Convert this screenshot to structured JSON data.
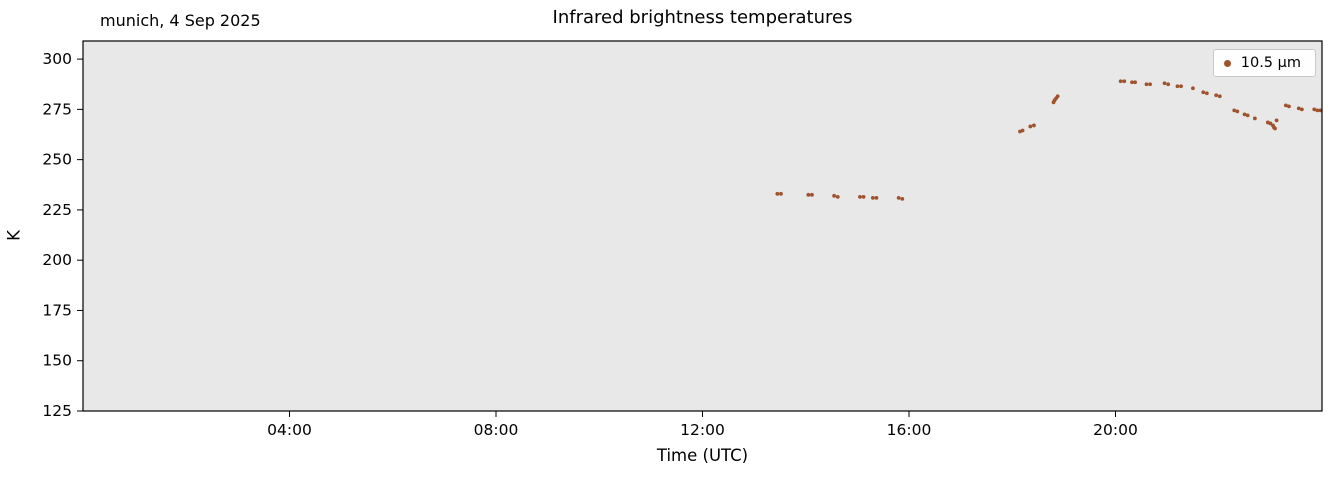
{
  "chart_data": {
    "type": "scatter",
    "title": "Infrared brightness temperatures",
    "subtitle": "munich, 4 Sep 2025",
    "xlabel": "Time (UTC)",
    "ylabel": "K",
    "grid": false,
    "plot_background": "#e8e8e8",
    "xlim_hours": [
      0,
      24
    ],
    "ylim": [
      125,
      309
    ],
    "x_ticks": [
      {
        "hour": 4,
        "label": "04:00"
      },
      {
        "hour": 8,
        "label": "08:00"
      },
      {
        "hour": 12,
        "label": "12:00"
      },
      {
        "hour": 16,
        "label": "16:00"
      },
      {
        "hour": 20,
        "label": "20:00"
      }
    ],
    "y_ticks": [
      125,
      150,
      175,
      200,
      225,
      250,
      275,
      300
    ],
    "legend": {
      "position": "upper right",
      "entries": [
        {
          "label": "10.5 μm",
          "color": "#A0522D"
        }
      ]
    },
    "series": [
      {
        "name": "10.5 μm",
        "color": "#A0522D",
        "points": [
          [
            13.45,
            233.0
          ],
          [
            13.52,
            233.0
          ],
          [
            14.05,
            232.5
          ],
          [
            14.12,
            232.5
          ],
          [
            14.55,
            232.0
          ],
          [
            14.62,
            231.5
          ],
          [
            15.05,
            231.5
          ],
          [
            15.12,
            231.5
          ],
          [
            15.3,
            231.0
          ],
          [
            15.37,
            231.0
          ],
          [
            15.8,
            231.0
          ],
          [
            15.87,
            230.5
          ],
          [
            18.15,
            264.0
          ],
          [
            18.2,
            264.5
          ],
          [
            18.35,
            266.5
          ],
          [
            18.42,
            267.0
          ],
          [
            18.8,
            278.5
          ],
          [
            18.82,
            279.5
          ],
          [
            18.85,
            280.5
          ],
          [
            18.88,
            281.5
          ],
          [
            20.1,
            289.0
          ],
          [
            20.17,
            289.0
          ],
          [
            20.32,
            288.5
          ],
          [
            20.38,
            288.5
          ],
          [
            20.6,
            287.5
          ],
          [
            20.67,
            287.5
          ],
          [
            20.95,
            288.0
          ],
          [
            21.02,
            287.5
          ],
          [
            21.2,
            286.5
          ],
          [
            21.27,
            286.5
          ],
          [
            21.5,
            285.5
          ],
          [
            21.7,
            283.5
          ],
          [
            21.77,
            283.0
          ],
          [
            21.95,
            282.0
          ],
          [
            22.02,
            281.5
          ],
          [
            22.3,
            274.5
          ],
          [
            22.36,
            274.0
          ],
          [
            22.5,
            272.5
          ],
          [
            22.56,
            272.0
          ],
          [
            22.7,
            270.5
          ],
          [
            22.95,
            268.5
          ],
          [
            23.0,
            268.0
          ],
          [
            23.05,
            267.0
          ],
          [
            23.07,
            266.0
          ],
          [
            23.09,
            265.5
          ],
          [
            23.12,
            269.5
          ],
          [
            23.3,
            277.0
          ],
          [
            23.36,
            276.5
          ],
          [
            23.55,
            275.5
          ],
          [
            23.61,
            275.0
          ],
          [
            23.85,
            275.0
          ],
          [
            23.91,
            274.5
          ],
          [
            23.97,
            274.5
          ]
        ]
      }
    ]
  }
}
